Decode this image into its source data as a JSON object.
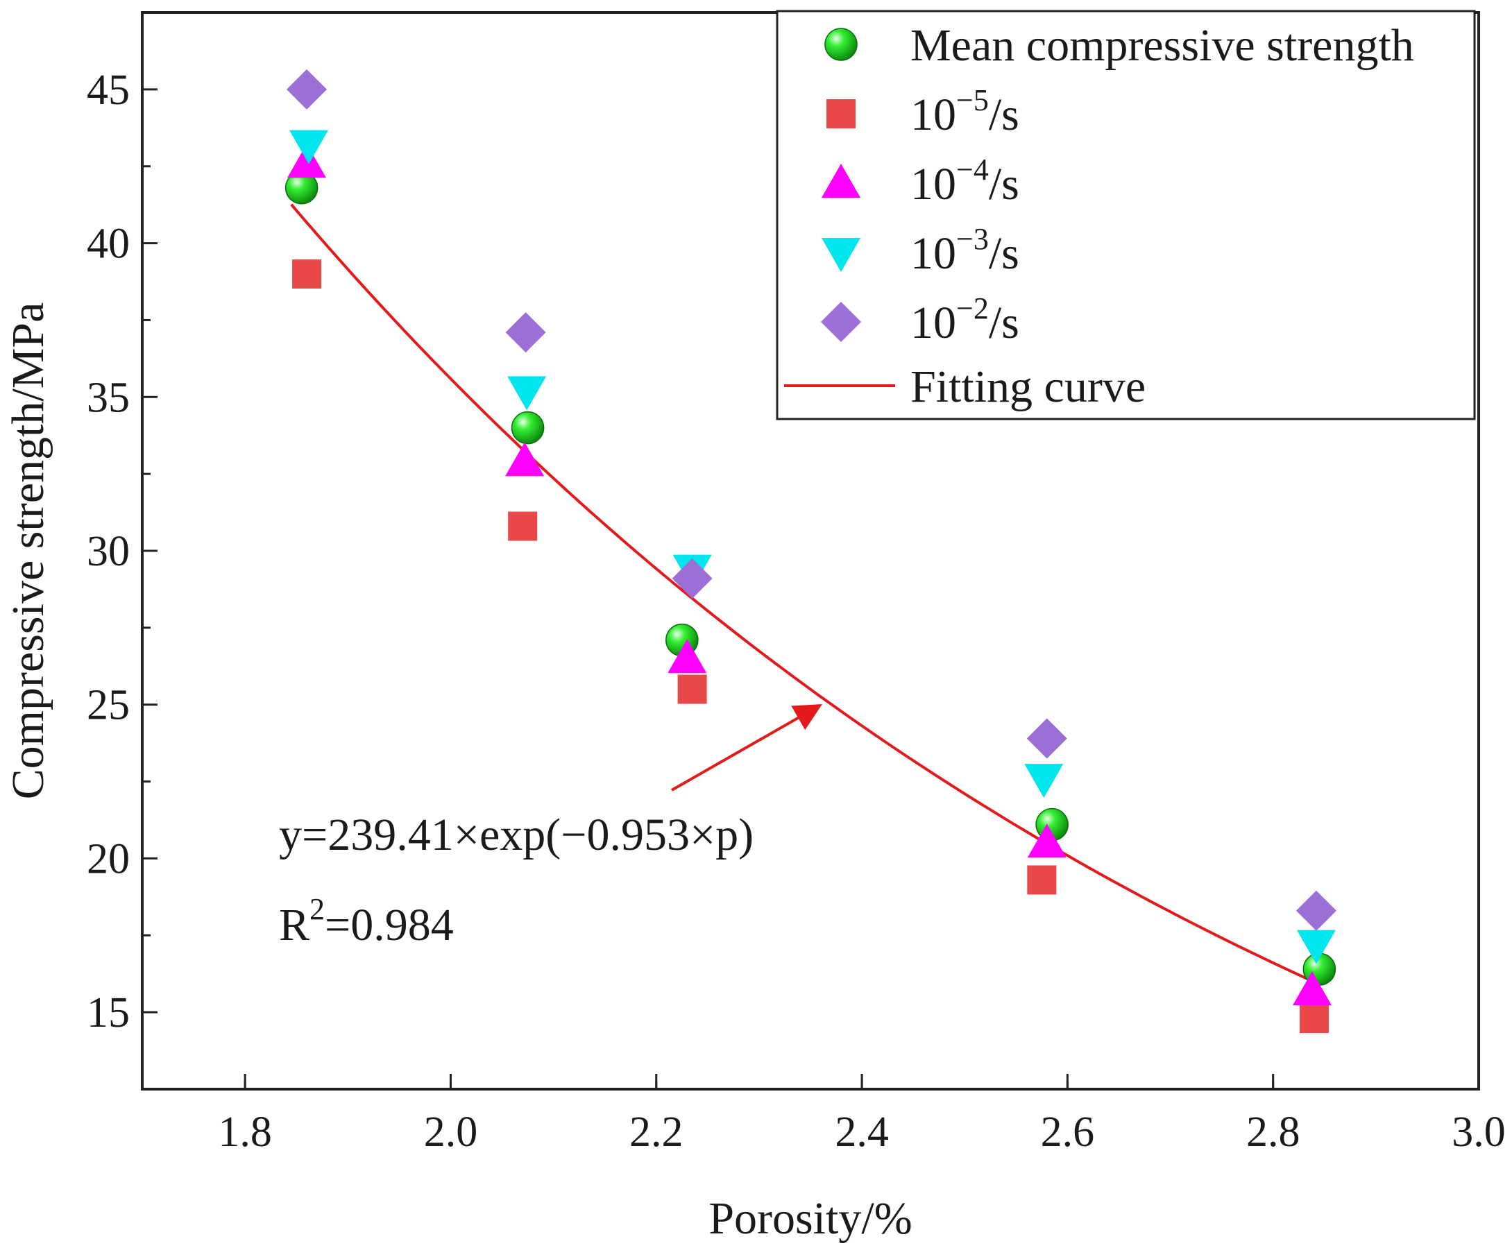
{
  "chart_data": {
    "type": "scatter",
    "xlabel": "Porosity/%",
    "ylabel": "Compressive strength/MPa",
    "xlim": [
      1.7,
      3.0
    ],
    "ylim": [
      12.5,
      47.5
    ],
    "x_ticks": [
      1.8,
      2.0,
      2.2,
      2.4,
      2.6,
      2.8,
      3.0
    ],
    "x_tick_labels": [
      "1.8",
      "2.0",
      "2.2",
      "2.4",
      "2.6",
      "2.8",
      "3.0"
    ],
    "y_ticks": [
      15,
      20,
      25,
      30,
      35,
      40,
      45
    ],
    "y_tick_labels": [
      "15",
      "20",
      "25",
      "30",
      "35",
      "40",
      "45"
    ],
    "grid": false,
    "legend_position": "top-right",
    "series": [
      {
        "name": "Mean compressive strength",
        "legend": {
          "base": "Mean compressive strength",
          "sup": ""
        },
        "marker": "sphere",
        "color": "#22dd22",
        "x": [
          1.855,
          2.075,
          2.225,
          2.585,
          2.845
        ],
        "y": [
          41.8,
          34.0,
          27.1,
          21.1,
          16.4
        ]
      },
      {
        "name": "10^-5/s",
        "legend": {
          "base": "10",
          "sup": "−5",
          "suffix": "/s"
        },
        "marker": "square",
        "color": "#e84848",
        "x": [
          1.86,
          2.07,
          2.235,
          2.575,
          2.84
        ],
        "y": [
          39.0,
          30.8,
          25.5,
          19.3,
          14.8
        ]
      },
      {
        "name": "10^-4/s",
        "legend": {
          "base": "10",
          "sup": "−4",
          "suffix": "/s"
        },
        "marker": "triangle-up",
        "color": "#ff00ff",
        "x": [
          1.86,
          2.072,
          2.23,
          2.58,
          2.838
        ],
        "y": [
          42.6,
          32.9,
          26.5,
          20.5,
          15.7
        ]
      },
      {
        "name": "10^-3/s",
        "legend": {
          "base": "10",
          "sup": "−3",
          "suffix": "/s"
        },
        "marker": "triangle-down",
        "color": "#00e5ee",
        "x": [
          1.862,
          2.074,
          2.235,
          2.577,
          2.842
        ],
        "y": [
          43.2,
          35.2,
          29.4,
          22.6,
          17.2
        ]
      },
      {
        "name": "10^-2/s",
        "legend": {
          "base": "10",
          "sup": "−2",
          "suffix": "/s"
        },
        "marker": "diamond",
        "color": "#9b6fd6",
        "x": [
          1.86,
          2.073,
          2.235,
          2.58,
          2.842
        ],
        "y": [
          45.0,
          37.1,
          29.1,
          23.9,
          18.3
        ]
      }
    ],
    "fit": {
      "name": "Fitting curve",
      "color": "#e31a1c",
      "a": 239.41,
      "b": -0.953,
      "x_range": [
        1.845,
        2.845
      ],
      "equation_label": "y=239.41×exp(−0.953×p)",
      "r2_label_base": "R",
      "r2_label_sup": "2",
      "r2_label_value": "=0.984"
    }
  }
}
